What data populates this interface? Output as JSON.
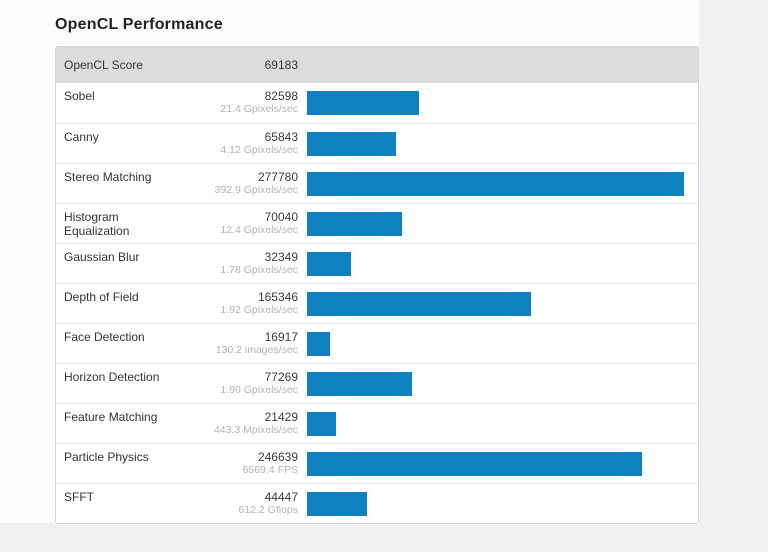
{
  "page": {
    "title": "OpenCL Performance",
    "background_color": "#f1f1f1",
    "content_background_color": "#fcfcfc",
    "header_background_color": "#dcdcdc"
  },
  "chart_data": {
    "type": "bar",
    "orientation": "horizontal",
    "title": "OpenCL Performance",
    "score": {
      "label": "OpenCL Score",
      "value": 69183
    },
    "categories": [
      "Sobel",
      "Canny",
      "Stereo Matching",
      "Histogram Equalization",
      "Gaussian Blur",
      "Depth of Field",
      "Face Detection",
      "Horizon Detection",
      "Feature Matching",
      "Particle Physics",
      "SFFT"
    ],
    "values": [
      82598,
      65843,
      277780,
      70040,
      32349,
      165346,
      16917,
      77269,
      21429,
      246639,
      44447
    ],
    "rate_labels": [
      "21.4 Gpixels/sec",
      "4.12 Gpixels/sec",
      "392.9 Gpixels/sec",
      "12.4 Gpixels/sec",
      "1.78 Gpixels/sec",
      "1.92 Gpixels/sec",
      "130.2 images/sec",
      "1.90 Gpixels/sec",
      "443.3 Mpixels/sec",
      "6569.4 FPS",
      "612.2 Gflops"
    ],
    "xlim": [
      0,
      277780
    ],
    "bar_color": "#1081c0",
    "grid": false,
    "legend": "none"
  }
}
